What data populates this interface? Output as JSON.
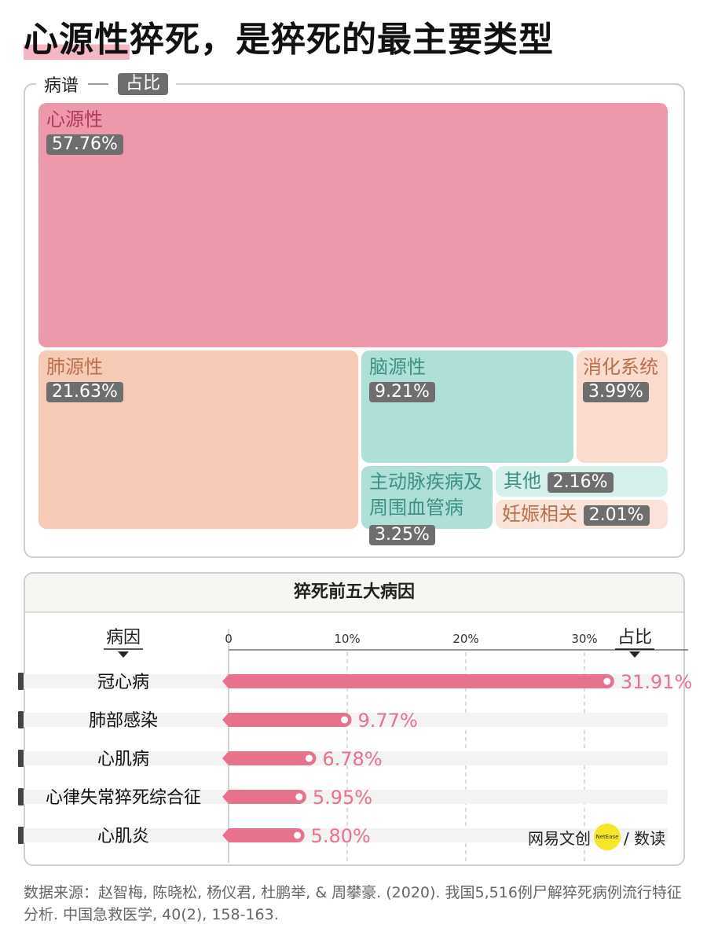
{
  "title": {
    "highlight": "心源性",
    "rest": "猝死，是猝死的最主要类型"
  },
  "legend": {
    "label": "病谱",
    "chip": "占比"
  },
  "treemap": [
    {
      "name": "心源性",
      "value": "57.76%",
      "color": "#ee98ac",
      "text_color": "#b03a5b"
    },
    {
      "name": "肺源性",
      "value": "21.63%",
      "color": "#f6cbb5",
      "text_color": "#b9704f"
    },
    {
      "name": "脑源性",
      "value": "9.21%",
      "color": "#aee0d8",
      "text_color": "#3f8f86"
    },
    {
      "name": "消化系统",
      "value": "3.99%",
      "color": "#f9dccd",
      "text_color": "#b9704f"
    },
    {
      "name": "主动脉疾病及",
      "name2": "周围血管病",
      "value": "3.25%",
      "color": "#aee0d8",
      "text_color": "#3f8f86"
    },
    {
      "name": "其他",
      "value": "2.16%",
      "color": "#d5efeb",
      "text_color": "#3f8f86"
    },
    {
      "name": "妊娠相关",
      "value": "2.01%",
      "color": "#fae3d8",
      "text_color": "#b9704f"
    }
  ],
  "chart_data": {
    "type": "bar",
    "title": "猝死前五大病因",
    "xlabel": "占比",
    "ylabel": "病因",
    "categories": [
      "冠心病",
      "肺部感染",
      "心肌病",
      "心律失常猝死综合征",
      "心肌炎"
    ],
    "values": [
      31.91,
      9.77,
      6.78,
      5.95,
      5.8
    ],
    "value_labels": [
      "31.91%",
      "9.77%",
      "6.78%",
      "5.95%",
      "5.80%"
    ],
    "ticks": [
      "0",
      "10%",
      "20%",
      "30%"
    ],
    "tick_values": [
      0,
      10,
      20,
      30
    ],
    "xlim": [
      0,
      37
    ],
    "bar_color": "#e8728c"
  },
  "logo": {
    "text": "网易文创",
    "badge": "NetEase",
    "suffix": "/ 数读"
  },
  "source": "数据来源：赵智梅, 陈晓松, 杨仪君, 杜鹏举, & 周攀豪. (2020). 我国5,516例尸解猝死病例流行特征分析. 中国急救医学, 40(2), 158-163."
}
